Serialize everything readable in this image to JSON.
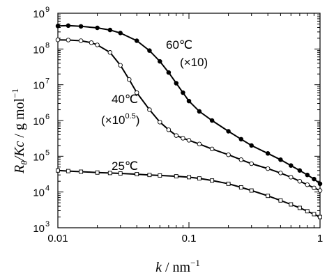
{
  "chart_data": {
    "type": "scatter",
    "xscale": "log",
    "yscale": "log",
    "xlim": [
      0.01,
      1
    ],
    "ylim": [
      1000,
      1000000000
    ],
    "x_ticks": [
      {
        "value": 0.01,
        "label": "0.01"
      },
      {
        "value": 0.1,
        "label": "0.1"
      },
      {
        "value": 1,
        "label": "1"
      }
    ],
    "y_ticks": [
      {
        "value": 1000,
        "base": "10",
        "exp": "3"
      },
      {
        "value": 10000,
        "base": "10",
        "exp": "4"
      },
      {
        "value": 100000,
        "base": "10",
        "exp": "5"
      },
      {
        "value": 1000000,
        "base": "10",
        "exp": "6"
      },
      {
        "value": 10000000,
        "base": "10",
        "exp": "7"
      },
      {
        "value": 100000000,
        "base": "10",
        "exp": "8"
      },
      {
        "value": 1000000000,
        "base": "10",
        "exp": "9"
      }
    ],
    "xlabel": {
      "var": "k",
      "unit": " / nm",
      "sup": "−1"
    },
    "ylabel": {
      "var": "R",
      "sub": "θ",
      "var2": "/Kc",
      "unit": " / g mol",
      "sup": "−1"
    },
    "grid": false,
    "series": [
      {
        "marker": "filled-circle",
        "annotation": {
          "line1": "60℃",
          "line2": "(×10)"
        },
        "x": [
          0.01,
          0.012,
          0.015,
          0.02,
          0.025,
          0.03,
          0.04,
          0.05,
          0.06,
          0.07,
          0.08,
          0.09,
          0.1,
          0.12,
          0.15,
          0.2,
          0.25,
          0.3,
          0.4,
          0.5,
          0.6,
          0.7,
          0.8,
          0.9,
          1.0
        ],
        "y": [
          440000000,
          450000000,
          430000000,
          390000000,
          340000000,
          280000000,
          170000000,
          90000000,
          45000000,
          22000000,
          11000000,
          6000000,
          3500000,
          1800000,
          1000000,
          500000,
          300000,
          200000,
          120000,
          80000,
          55000,
          40000,
          30000,
          23000,
          17000
        ]
      },
      {
        "marker": "open-circle",
        "annotation": {
          "line1": "40℃",
          "line2_pre": "(×10",
          "line2_sup": "0.5",
          "line2_post": ")"
        },
        "x": [
          0.01,
          0.012,
          0.015,
          0.018,
          0.02,
          0.025,
          0.03,
          0.035,
          0.04,
          0.05,
          0.06,
          0.07,
          0.08,
          0.09,
          0.1,
          0.12,
          0.15,
          0.2,
          0.25,
          0.3,
          0.4,
          0.5,
          0.6,
          0.7,
          0.8,
          0.9,
          1.0
        ],
        "y": [
          180000000,
          178000000,
          170000000,
          150000000,
          130000000,
          80000000,
          35000000,
          14000000,
          6000000,
          2000000,
          900000,
          550000,
          380000,
          320000,
          280000,
          220000,
          160000,
          110000,
          80000,
          62000,
          45000,
          34000,
          26000,
          20000,
          16000,
          13000,
          11000
        ]
      },
      {
        "marker": "open-square",
        "annotation": {
          "line1": "25℃"
        },
        "x": [
          0.01,
          0.012,
          0.015,
          0.02,
          0.025,
          0.03,
          0.04,
          0.05,
          0.06,
          0.08,
          0.1,
          0.12,
          0.15,
          0.2,
          0.25,
          0.3,
          0.4,
          0.5,
          0.6,
          0.7,
          0.8,
          0.9,
          1.0
        ],
        "y": [
          40000,
          38500,
          37000,
          35000,
          34000,
          33000,
          31500,
          30000,
          29000,
          27500,
          26000,
          24000,
          21000,
          17000,
          13500,
          11000,
          7800,
          5800,
          4500,
          3600,
          2900,
          2400,
          2000
        ]
      }
    ]
  }
}
